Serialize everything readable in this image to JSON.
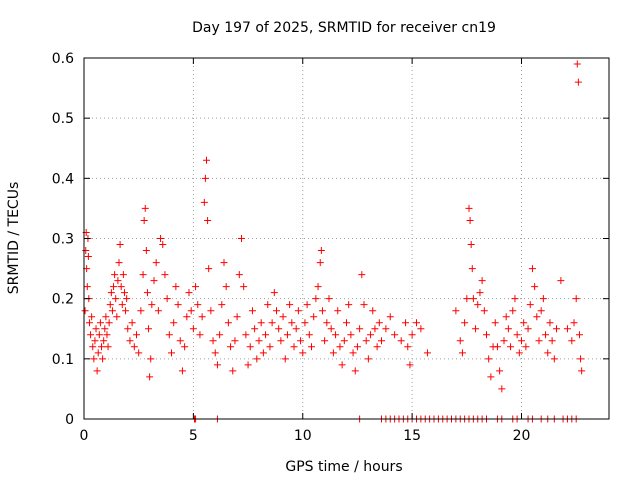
{
  "chart_data": {
    "type": "scatter",
    "title": "Day 197 of 2025, SRMTID for receiver cn19",
    "xlabel": "GPS time / hours",
    "ylabel": "SRMTID / TECUs",
    "xlim": [
      0,
      24
    ],
    "ylim": [
      0,
      0.6
    ],
    "xticks": [
      0,
      5,
      10,
      15,
      20
    ],
    "yticks": [
      0,
      0.1,
      0.2,
      0.3,
      0.4,
      0.5,
      0.6
    ],
    "xtick_labels": [
      "0",
      "5",
      "10",
      "15",
      "20"
    ],
    "ytick_labels": [
      "0",
      "0.1",
      "0.2",
      "0.3",
      "0.4",
      "0.5",
      "0.6"
    ],
    "grid": true,
    "marker": "+",
    "colors": {
      "series": "#ff0000",
      "grid": "#a0a0a0",
      "axis": "#000000"
    },
    "series": [
      {
        "name": "SRMTID",
        "points": [
          [
            0.05,
            0.18
          ],
          [
            0.08,
            0.28
          ],
          [
            0.1,
            0.31
          ],
          [
            0.12,
            0.25
          ],
          [
            0.15,
            0.22
          ],
          [
            0.18,
            0.3
          ],
          [
            0.2,
            0.27
          ],
          [
            0.22,
            0.2
          ],
          [
            0.25,
            0.16
          ],
          [
            0.3,
            0.14
          ],
          [
            0.35,
            0.17
          ],
          [
            0.4,
            0.12
          ],
          [
            0.45,
            0.1
          ],
          [
            0.5,
            0.13
          ],
          [
            0.55,
            0.15
          ],
          [
            0.6,
            0.08
          ],
          [
            0.65,
            0.11
          ],
          [
            0.7,
            0.14
          ],
          [
            0.75,
            0.16
          ],
          [
            0.8,
            0.12
          ],
          [
            0.85,
            0.1
          ],
          [
            0.9,
            0.13
          ],
          [
            0.95,
            0.15
          ],
          [
            1.0,
            0.17
          ],
          [
            1.05,
            0.14
          ],
          [
            1.1,
            0.12
          ],
          [
            1.15,
            0.16
          ],
          [
            1.2,
            0.19
          ],
          [
            1.25,
            0.21
          ],
          [
            1.3,
            0.18
          ],
          [
            1.35,
            0.22
          ],
          [
            1.4,
            0.24
          ],
          [
            1.45,
            0.2
          ],
          [
            1.5,
            0.17
          ],
          [
            1.55,
            0.23
          ],
          [
            1.6,
            0.26
          ],
          [
            1.65,
            0.29
          ],
          [
            1.7,
            0.22
          ],
          [
            1.75,
            0.19
          ],
          [
            1.8,
            0.24
          ],
          [
            1.85,
            0.21
          ],
          [
            1.9,
            0.18
          ],
          [
            1.95,
            0.2
          ],
          [
            2.0,
            0.15
          ],
          [
            2.1,
            0.13
          ],
          [
            2.2,
            0.16
          ],
          [
            2.3,
            0.12
          ],
          [
            2.4,
            0.14
          ],
          [
            2.5,
            0.11
          ],
          [
            2.6,
            0.18
          ],
          [
            2.7,
            0.24
          ],
          [
            2.75,
            0.33
          ],
          [
            2.8,
            0.35
          ],
          [
            2.85,
            0.28
          ],
          [
            2.9,
            0.21
          ],
          [
            2.95,
            0.15
          ],
          [
            3.0,
            0.07
          ],
          [
            3.05,
            0.1
          ],
          [
            3.1,
            0.19
          ],
          [
            3.2,
            0.23
          ],
          [
            3.3,
            0.26
          ],
          [
            3.4,
            0.18
          ],
          [
            3.5,
            0.3
          ],
          [
            3.6,
            0.29
          ],
          [
            3.7,
            0.24
          ],
          [
            3.8,
            0.2
          ],
          [
            3.9,
            0.14
          ],
          [
            4.0,
            0.11
          ],
          [
            4.1,
            0.16
          ],
          [
            4.2,
            0.22
          ],
          [
            4.3,
            0.19
          ],
          [
            4.4,
            0.13
          ],
          [
            4.5,
            0.08
          ],
          [
            4.6,
            0.12
          ],
          [
            4.7,
            0.17
          ],
          [
            4.8,
            0.21
          ],
          [
            4.9,
            0.18
          ],
          [
            5.0,
            0.15
          ],
          [
            5.1,
            0.22
          ],
          [
            5.2,
            0.19
          ],
          [
            5.3,
            0.14
          ],
          [
            5.4,
            0.17
          ],
          [
            5.5,
            0.36
          ],
          [
            5.55,
            0.4
          ],
          [
            5.6,
            0.43
          ],
          [
            5.65,
            0.33
          ],
          [
            5.7,
            0.25
          ],
          [
            5.8,
            0.18
          ],
          [
            5.9,
            0.13
          ],
          [
            6.0,
            0.11
          ],
          [
            6.1,
            0.09
          ],
          [
            6.2,
            0.14
          ],
          [
            6.3,
            0.19
          ],
          [
            6.4,
            0.26
          ],
          [
            6.5,
            0.22
          ],
          [
            6.6,
            0.16
          ],
          [
            6.7,
            0.12
          ],
          [
            6.8,
            0.08
          ],
          [
            6.9,
            0.13
          ],
          [
            7.0,
            0.17
          ],
          [
            7.1,
            0.24
          ],
          [
            7.2,
            0.3
          ],
          [
            7.3,
            0.22
          ],
          [
            7.4,
            0.14
          ],
          [
            7.5,
            0.09
          ],
          [
            7.6,
            0.12
          ],
          [
            7.7,
            0.18
          ],
          [
            7.8,
            0.15
          ],
          [
            7.9,
            0.1
          ],
          [
            8.0,
            0.13
          ],
          [
            8.1,
            0.16
          ],
          [
            8.2,
            0.11
          ],
          [
            8.3,
            0.14
          ],
          [
            8.4,
            0.19
          ],
          [
            8.5,
            0.12
          ],
          [
            8.6,
            0.16
          ],
          [
            8.7,
            0.21
          ],
          [
            8.8,
            0.18
          ],
          [
            8.9,
            0.15
          ],
          [
            9.0,
            0.13
          ],
          [
            9.1,
            0.17
          ],
          [
            9.2,
            0.1
          ],
          [
            9.3,
            0.14
          ],
          [
            9.4,
            0.19
          ],
          [
            9.5,
            0.16
          ],
          [
            9.6,
            0.12
          ],
          [
            9.7,
            0.15
          ],
          [
            9.8,
            0.18
          ],
          [
            9.9,
            0.13
          ],
          [
            10.0,
            0.11
          ],
          [
            10.1,
            0.16
          ],
          [
            10.2,
            0.19
          ],
          [
            10.3,
            0.14
          ],
          [
            10.4,
            0.12
          ],
          [
            10.5,
            0.17
          ],
          [
            10.6,
            0.2
          ],
          [
            10.7,
            0.22
          ],
          [
            10.8,
            0.26
          ],
          [
            10.85,
            0.28
          ],
          [
            10.9,
            0.18
          ],
          [
            11.0,
            0.13
          ],
          [
            11.1,
            0.16
          ],
          [
            11.2,
            0.2
          ],
          [
            11.3,
            0.15
          ],
          [
            11.4,
            0.11
          ],
          [
            11.5,
            0.14
          ],
          [
            11.6,
            0.18
          ],
          [
            11.7,
            0.12
          ],
          [
            11.8,
            0.09
          ],
          [
            11.9,
            0.13
          ],
          [
            12.0,
            0.16
          ],
          [
            12.1,
            0.19
          ],
          [
            12.2,
            0.14
          ],
          [
            12.3,
            0.11
          ],
          [
            12.4,
            0.08
          ],
          [
            12.5,
            0.12
          ],
          [
            12.6,
            0.15
          ],
          [
            12.7,
            0.24
          ],
          [
            12.8,
            0.19
          ],
          [
            12.9,
            0.13
          ],
          [
            13.0,
            0.1
          ],
          [
            13.1,
            0.14
          ],
          [
            13.2,
            0.18
          ],
          [
            13.3,
            0.15
          ],
          [
            13.4,
            0.12
          ],
          [
            13.5,
            0.16
          ],
          [
            13.6,
            0.13
          ],
          [
            13.8,
            0.15
          ],
          [
            14.0,
            0.17
          ],
          [
            14.2,
            0.14
          ],
          [
            14.5,
            0.13
          ],
          [
            14.7,
            0.16
          ],
          [
            14.8,
            0.12
          ],
          [
            14.9,
            0.09
          ],
          [
            15.0,
            0.14
          ],
          [
            15.2,
            0.16
          ],
          [
            15.4,
            0.15
          ],
          [
            15.7,
            0.11
          ],
          [
            17.0,
            0.18
          ],
          [
            17.2,
            0.13
          ],
          [
            17.3,
            0.11
          ],
          [
            17.4,
            0.16
          ],
          [
            17.5,
            0.2
          ],
          [
            17.6,
            0.35
          ],
          [
            17.65,
            0.33
          ],
          [
            17.7,
            0.29
          ],
          [
            17.75,
            0.25
          ],
          [
            17.8,
            0.2
          ],
          [
            17.9,
            0.15
          ],
          [
            18.0,
            0.19
          ],
          [
            18.1,
            0.21
          ],
          [
            18.2,
            0.23
          ],
          [
            18.3,
            0.18
          ],
          [
            18.4,
            0.14
          ],
          [
            18.5,
            0.1
          ],
          [
            18.6,
            0.07
          ],
          [
            18.7,
            0.12
          ],
          [
            18.8,
            0.16
          ],
          [
            18.9,
            0.12
          ],
          [
            19.0,
            0.08
          ],
          [
            19.1,
            0.05
          ],
          [
            19.2,
            0.13
          ],
          [
            19.3,
            0.17
          ],
          [
            19.4,
            0.15
          ],
          [
            19.5,
            0.12
          ],
          [
            19.6,
            0.18
          ],
          [
            19.7,
            0.2
          ],
          [
            19.8,
            0.14
          ],
          [
            19.9,
            0.11
          ],
          [
            20.0,
            0.13
          ],
          [
            20.1,
            0.16
          ],
          [
            20.2,
            0.12
          ],
          [
            20.3,
            0.15
          ],
          [
            20.4,
            0.19
          ],
          [
            20.5,
            0.25
          ],
          [
            20.6,
            0.22
          ],
          [
            20.7,
            0.17
          ],
          [
            20.8,
            0.13
          ],
          [
            20.9,
            0.18
          ],
          [
            21.0,
            0.2
          ],
          [
            21.1,
            0.14
          ],
          [
            21.2,
            0.11
          ],
          [
            21.3,
            0.16
          ],
          [
            21.4,
            0.13
          ],
          [
            21.5,
            0.1
          ],
          [
            21.6,
            0.15
          ],
          [
            21.8,
            0.23
          ],
          [
            22.1,
            0.15
          ],
          [
            22.3,
            0.13
          ],
          [
            22.4,
            0.16
          ],
          [
            22.5,
            0.2
          ],
          [
            22.55,
            0.59
          ],
          [
            22.6,
            0.56
          ],
          [
            22.65,
            0.14
          ],
          [
            22.7,
            0.1
          ],
          [
            22.75,
            0.08
          ],
          [
            5.05,
            0
          ],
          [
            5.1,
            0
          ],
          [
            6.1,
            0
          ],
          [
            12.6,
            0
          ],
          [
            13.6,
            0
          ],
          [
            13.8,
            0
          ],
          [
            14.0,
            0
          ],
          [
            14.2,
            0
          ],
          [
            14.4,
            0
          ],
          [
            14.6,
            0
          ],
          [
            14.8,
            0
          ],
          [
            15.0,
            0
          ],
          [
            15.2,
            0
          ],
          [
            15.4,
            0
          ],
          [
            15.6,
            0
          ],
          [
            15.8,
            0
          ],
          [
            16.0,
            0
          ],
          [
            16.2,
            0
          ],
          [
            16.4,
            0
          ],
          [
            16.6,
            0
          ],
          [
            16.8,
            0
          ],
          [
            17.0,
            0
          ],
          [
            17.2,
            0
          ],
          [
            17.4,
            0
          ],
          [
            17.6,
            0
          ],
          [
            17.8,
            0
          ],
          [
            18.0,
            0
          ],
          [
            18.2,
            0
          ],
          [
            18.4,
            0
          ],
          [
            18.9,
            0
          ],
          [
            19.1,
            0
          ],
          [
            19.6,
            0
          ],
          [
            19.8,
            0
          ],
          [
            20.3,
            0
          ],
          [
            20.5,
            0
          ],
          [
            20.9,
            0
          ],
          [
            21.2,
            0
          ],
          [
            21.5,
            0
          ],
          [
            21.9,
            0
          ],
          [
            22.1,
            0
          ],
          [
            22.3,
            0
          ],
          [
            22.5,
            0
          ]
        ]
      }
    ]
  }
}
